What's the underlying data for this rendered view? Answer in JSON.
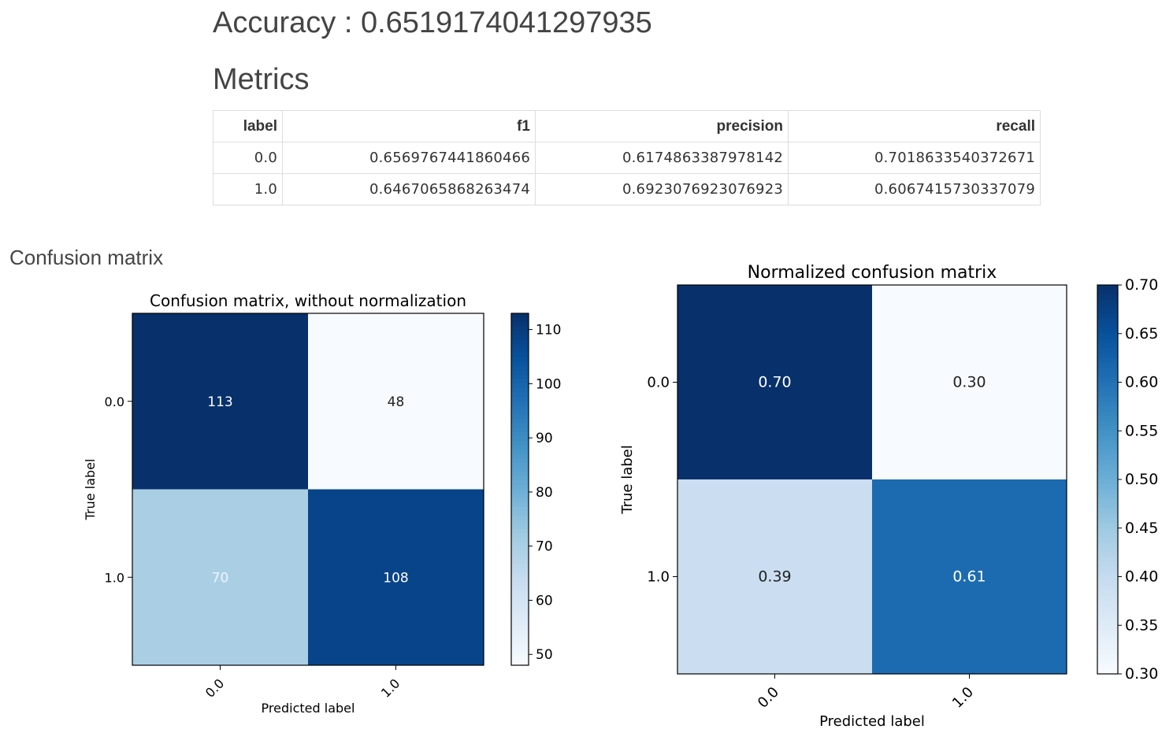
{
  "accuracy_text": "Accuracy : 0.6519174041297935",
  "metrics": {
    "heading": "Metrics",
    "columns": [
      "label",
      "f1",
      "precision",
      "recall"
    ],
    "rows": [
      [
        "0.0",
        "0.6569767441860466",
        "0.6174863387978142",
        "0.7018633540372671"
      ],
      [
        "1.0",
        "0.6467065868263474",
        "0.6923076923076923",
        "0.6067415730337079"
      ]
    ]
  },
  "confusion_heading": "Confusion matrix",
  "chart_data": [
    {
      "type": "heatmap",
      "title": "Confusion matrix, without normalization",
      "xlabel": "Predicted label",
      "ylabel": "True label",
      "x_categories": [
        "0.0",
        "1.0"
      ],
      "y_categories": [
        "0.0",
        "1.0"
      ],
      "values": [
        [
          113,
          48
        ],
        [
          70,
          108
        ]
      ],
      "cell_labels": [
        [
          "113",
          "48"
        ],
        [
          "70",
          "108"
        ]
      ],
      "colormap": "Blues",
      "colorbar_range": [
        48,
        113
      ],
      "colorbar_ticks": [
        50,
        60,
        70,
        80,
        90,
        100,
        110
      ]
    },
    {
      "type": "heatmap",
      "title": "Normalized confusion matrix",
      "xlabel": "Predicted label",
      "ylabel": "True label",
      "x_categories": [
        "0.0",
        "1.0"
      ],
      "y_categories": [
        "0.0",
        "1.0"
      ],
      "values": [
        [
          0.7,
          0.3
        ],
        [
          0.39,
          0.61
        ]
      ],
      "cell_labels": [
        [
          "0.70",
          "0.30"
        ],
        [
          "0.39",
          "0.61"
        ]
      ],
      "colormap": "Blues",
      "colorbar_range": [
        0.3,
        0.7
      ],
      "colorbar_ticks": [
        "0.30",
        "0.35",
        "0.40",
        "0.45",
        "0.50",
        "0.55",
        "0.60",
        "0.65",
        "0.70"
      ]
    }
  ]
}
